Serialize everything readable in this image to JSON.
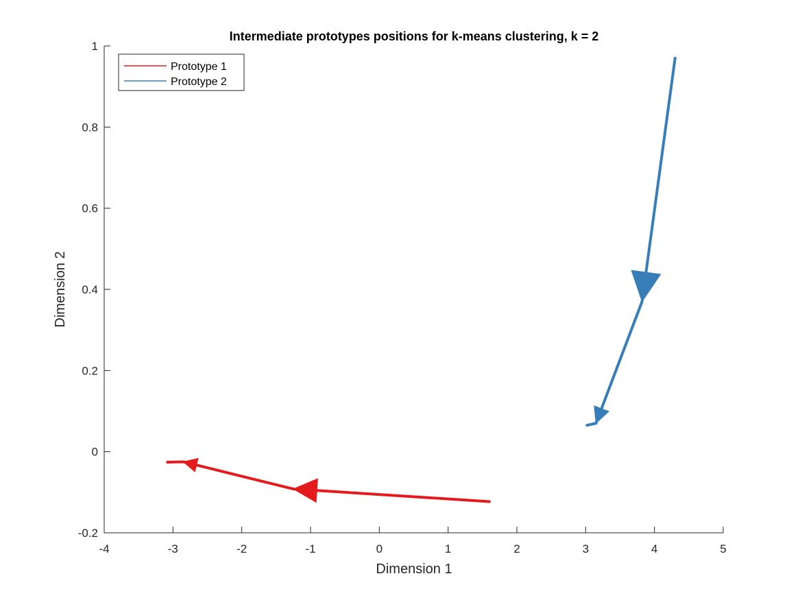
{
  "chart_data": {
    "type": "line",
    "title": "Intermediate prototypes positions for k-means clustering, k = 2",
    "xlabel": "Dimension 1",
    "ylabel": "Dimension 2",
    "xlim": [
      -4,
      5
    ],
    "ylim": [
      -0.2,
      1
    ],
    "xticks": [
      -4,
      -3,
      -2,
      -1,
      0,
      1,
      2,
      3,
      4,
      5
    ],
    "yticks": [
      -0.2,
      0,
      0.2,
      0.4,
      0.6,
      0.8,
      1
    ],
    "xtick_labels": [
      "-4",
      "-3",
      "-2",
      "-1",
      "0",
      "1",
      "2",
      "3",
      "4",
      "5"
    ],
    "ytick_labels": [
      "-0.2",
      "0",
      "0.2",
      "0.4",
      "0.6",
      "0.8",
      "1"
    ],
    "grid": false,
    "legend_position": "top-left",
    "series": [
      {
        "name": "Prototype 1",
        "color": "#e41a1c",
        "points": [
          {
            "x": 1.6,
            "y": -0.123
          },
          {
            "x": -1.25,
            "y": -0.092
          },
          {
            "x": -2.85,
            "y": -0.025
          },
          {
            "x": -3.08,
            "y": -0.026
          }
        ]
      },
      {
        "name": "Prototype 2",
        "color": "#377eb8",
        "points": [
          {
            "x": 4.3,
            "y": 0.97
          },
          {
            "x": 3.82,
            "y": 0.37
          },
          {
            "x": 3.15,
            "y": 0.07
          },
          {
            "x": 3.02,
            "y": 0.065
          }
        ]
      }
    ]
  }
}
